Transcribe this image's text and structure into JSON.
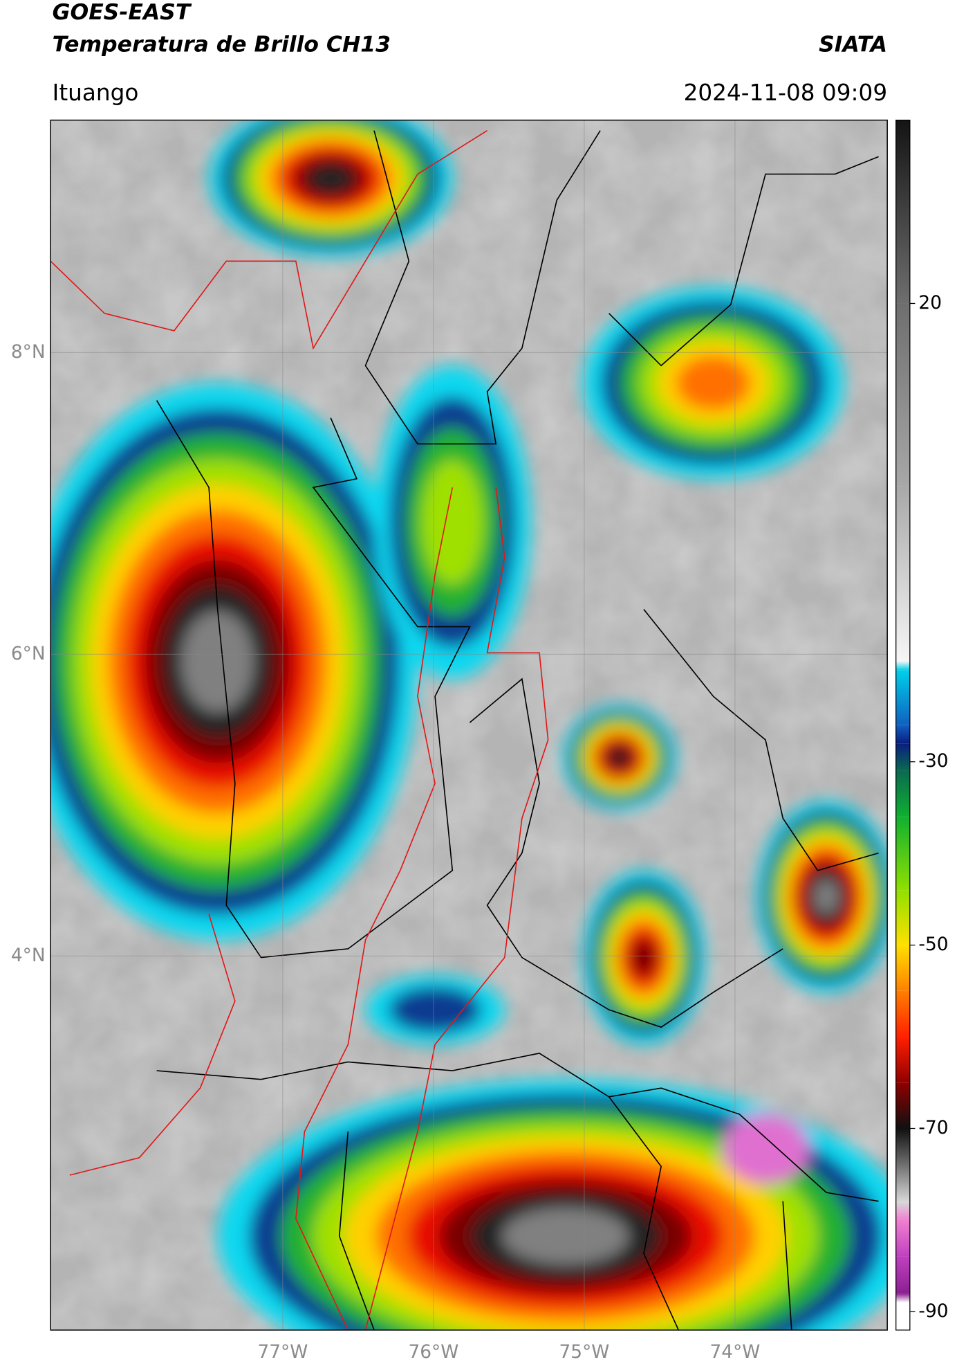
{
  "header": {
    "title_line1": "GOES-EAST",
    "title_line2": "Temperatura de Brillo CH13",
    "source": "SIATA",
    "location": "Ituango",
    "datetime": "2024-11-08 09:09"
  },
  "map": {
    "lonlim": [
      -78.54,
      -72.99
    ],
    "latlim": [
      1.52,
      9.54
    ],
    "lat_ticks": [
      {
        "value": 8,
        "label": "8°N"
      },
      {
        "value": 6,
        "label": "6°N"
      },
      {
        "value": 4,
        "label": "4°N"
      }
    ],
    "lon_ticks": [
      {
        "value": -77,
        "label": "77°W"
      },
      {
        "value": -76,
        "label": "76°W"
      },
      {
        "value": -75,
        "label": "75°W"
      },
      {
        "value": -74,
        "label": "74°W"
      }
    ],
    "grid": true
  },
  "colorbar": {
    "lim": [
      -92,
      40
    ],
    "ticks": [
      20,
      -30,
      -50,
      -70,
      -90
    ],
    "stops": [
      {
        "value": 40,
        "color": "#141414"
      },
      {
        "value": 20,
        "color": "#6e6e6e"
      },
      {
        "value": 0,
        "color": "#a8a8a8"
      },
      {
        "value": -19,
        "color": "#f6f6f6"
      },
      {
        "value": -20,
        "color": "#00d0ea"
      },
      {
        "value": -26,
        "color": "#1060c0"
      },
      {
        "value": -28,
        "color": "#0a1e80"
      },
      {
        "value": -31,
        "color": "#0a6a50"
      },
      {
        "value": -36,
        "color": "#10b030"
      },
      {
        "value": -44,
        "color": "#90e000"
      },
      {
        "value": -50,
        "color": "#ffe000"
      },
      {
        "value": -55,
        "color": "#ff8000"
      },
      {
        "value": -60,
        "color": "#ff2000"
      },
      {
        "value": -65,
        "color": "#900000"
      },
      {
        "value": -70,
        "color": "#101010"
      },
      {
        "value": -74,
        "color": "#707070"
      },
      {
        "value": -78,
        "color": "#d8d8d8"
      },
      {
        "value": -80,
        "color": "#f080d0"
      },
      {
        "value": -84,
        "color": "#c040c0"
      },
      {
        "value": -88,
        "color": "#8a2090"
      },
      {
        "value": -89,
        "color": "#ffffff"
      },
      {
        "value": -92,
        "color": "#ffffff"
      }
    ]
  }
}
